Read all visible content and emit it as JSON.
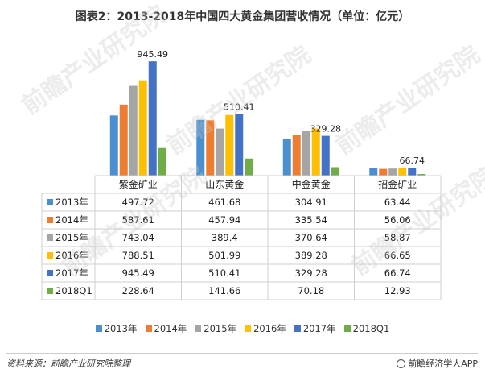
{
  "title": "图表2：2013-2018年中国四大黄金集团营收情况（单位：亿元）",
  "watermark": "前瞻产业研究院",
  "source": "资料来源：前瞻产业研究院整理",
  "app_credit": "前瞻经济学人APP",
  "chart_data": {
    "type": "bar",
    "categories": [
      "紫金矿业",
      "山东黄金",
      "中金黄金",
      "招金矿业"
    ],
    "series": [
      {
        "name": "2013年",
        "color": "#4a8fcf",
        "values": [
          497.72,
          461.68,
          304.91,
          63.44
        ]
      },
      {
        "name": "2014年",
        "color": "#ee7d31",
        "values": [
          587.61,
          457.94,
          335.54,
          56.06
        ]
      },
      {
        "name": "2015年",
        "color": "#a5a5a5",
        "values": [
          743.04,
          389.4,
          370.64,
          58.87
        ]
      },
      {
        "name": "2016年",
        "color": "#fec000",
        "values": [
          788.51,
          501.99,
          389.28,
          66.65
        ]
      },
      {
        "name": "2017年",
        "color": "#4472c4",
        "values": [
          945.49,
          510.41,
          329.28,
          66.74
        ]
      },
      {
        "name": "2018Q1",
        "color": "#70ad47",
        "values": [
          228.64,
          141.66,
          70.18,
          12.93
        ]
      }
    ],
    "table_cells": [
      [
        "497.72",
        "461.68",
        "304.91",
        "63.44"
      ],
      [
        "587.61",
        "457.94",
        "335.54",
        "56.06"
      ],
      [
        "743.04",
        "389.4",
        "370.64",
        "58.87"
      ],
      [
        "788.51",
        "501.99",
        "389.28",
        "66.65"
      ],
      [
        "945.49",
        "510.41",
        "329.28",
        "66.74"
      ],
      [
        "228.64",
        "141.66",
        "70.18",
        "12.93"
      ]
    ],
    "data_labels": [
      "945.49",
      "510.41",
      "329.28",
      "66.74"
    ],
    "data_label_series": "2017年",
    "ylim": [
      0,
      1000
    ],
    "grid": false,
    "legend_position": "bottom",
    "data_table": true
  }
}
